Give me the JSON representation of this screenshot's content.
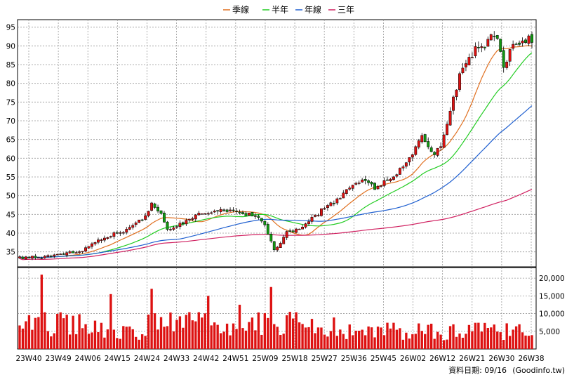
{
  "chart_data": {
    "type": "candlestick",
    "legend": [
      {
        "name": "季線",
        "color": "#e07020"
      },
      {
        "name": "半年",
        "color": "#22cc22"
      },
      {
        "name": "年線",
        "color": "#2060d0"
      },
      {
        "name": "三年",
        "color": "#d02060"
      }
    ],
    "price_axis": {
      "ylim": [
        31,
        97
      ],
      "ticks": [
        35,
        40,
        45,
        50,
        55,
        60,
        65,
        70,
        75,
        80,
        85,
        90,
        95
      ]
    },
    "volume_axis": {
      "ylim": [
        0,
        23000
      ],
      "ticks": [
        5000,
        10000,
        15000,
        20000
      ],
      "tick_labels": [
        "5,000",
        "10,000",
        "15,000",
        "20,000"
      ]
    },
    "x_tick_labels": [
      "23W40",
      "23W49",
      "24W06",
      "24W15",
      "24W24",
      "24W33",
      "24W42",
      "24W51",
      "25W09",
      "25W18",
      "25W27",
      "25W36",
      "25W45",
      "26W02",
      "26W12",
      "26W21",
      "26W30",
      "26W38"
    ],
    "grid": true,
    "anchors": [
      {
        "i": 0,
        "p": 33.5
      },
      {
        "i": 8,
        "p": 33.8
      },
      {
        "i": 14,
        "p": 34.3
      },
      {
        "i": 20,
        "p": 35.5
      },
      {
        "i": 26,
        "p": 38.5
      },
      {
        "i": 33,
        "p": 40.5
      },
      {
        "i": 39,
        "p": 44.0
      },
      {
        "i": 42,
        "p": 47.5
      },
      {
        "i": 45,
        "p": 45.0
      },
      {
        "i": 47,
        "p": 41.0
      },
      {
        "i": 52,
        "p": 43.0
      },
      {
        "i": 58,
        "p": 45.5
      },
      {
        "i": 64,
        "p": 46.0
      },
      {
        "i": 70,
        "p": 45.5
      },
      {
        "i": 76,
        "p": 44.5
      },
      {
        "i": 78,
        "p": 42.5
      },
      {
        "i": 81,
        "p": 35.5
      },
      {
        "i": 85,
        "p": 40.0
      },
      {
        "i": 90,
        "p": 42.0
      },
      {
        "i": 96,
        "p": 46.0
      },
      {
        "i": 101,
        "p": 49.0
      },
      {
        "i": 106,
        "p": 53.0
      },
      {
        "i": 110,
        "p": 54.5
      },
      {
        "i": 113,
        "p": 52.0
      },
      {
        "i": 117,
        "p": 54.0
      },
      {
        "i": 121,
        "p": 57.0
      },
      {
        "i": 125,
        "p": 61.0
      },
      {
        "i": 128,
        "p": 66.0
      },
      {
        "i": 131,
        "p": 61.0
      },
      {
        "i": 134,
        "p": 63.0
      },
      {
        "i": 137,
        "p": 73.0
      },
      {
        "i": 140,
        "p": 82.0
      },
      {
        "i": 143,
        "p": 87.0
      },
      {
        "i": 146,
        "p": 90.0
      },
      {
        "i": 148,
        "p": 89.0
      },
      {
        "i": 150,
        "p": 93.0
      },
      {
        "i": 152,
        "p": 92.0
      },
      {
        "i": 154,
        "p": 84.0
      },
      {
        "i": 156,
        "p": 89.0
      },
      {
        "i": 158,
        "p": 91.0
      },
      {
        "i": 160,
        "p": 92.0
      },
      {
        "i": 163,
        "p": 91.5
      }
    ],
    "date_label": "資料日期: 09/16",
    "source": "(Goodinfo.tw)"
  }
}
